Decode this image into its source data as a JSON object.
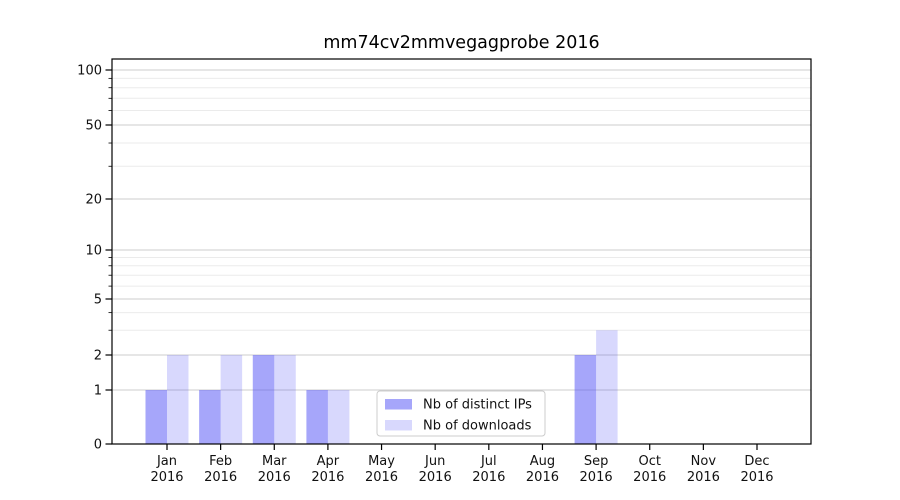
{
  "title": "mm74cv2mmvegagprobe 2016",
  "chart_data": {
    "type": "bar",
    "title": "mm74cv2mmvegagprobe 2016",
    "categories": [
      "Jan 2016",
      "Feb 2016",
      "Mar 2016",
      "Apr 2016",
      "May 2016",
      "Jun 2016",
      "Jul 2016",
      "Aug 2016",
      "Sep 2016",
      "Oct 2016",
      "Nov 2016",
      "Dec 2016"
    ],
    "series": [
      {
        "name": "Nb of distinct IPs",
        "color": "#5555f5",
        "alpha": 0.52,
        "effective_color": "#a8a8f8",
        "values": [
          1,
          1,
          2,
          1,
          0,
          0,
          0,
          0,
          2,
          0,
          0,
          0
        ]
      },
      {
        "name": "Nb of downloads",
        "color": "#5555f5",
        "alpha": 0.23,
        "effective_color": "#d8d8f8",
        "values": [
          2,
          2,
          2,
          1,
          0,
          0,
          0,
          0,
          3,
          0,
          0,
          0
        ]
      }
    ],
    "xlabel": "",
    "ylabel": "",
    "yscale": "symlog",
    "yticks": [
      0,
      1,
      2,
      5,
      10,
      20,
      50,
      100
    ],
    "ylim": [
      0,
      120
    ],
    "grid": true,
    "legend": {
      "entries": [
        "Nb of distinct IPs",
        "Nb of downloads"
      ],
      "position": "inside-lower-center"
    },
    "colors": {
      "major_grid": "#cccccc",
      "minor_grid": "#ebebeb",
      "spine": "#000000",
      "legend_border": "#cccccc"
    }
  }
}
